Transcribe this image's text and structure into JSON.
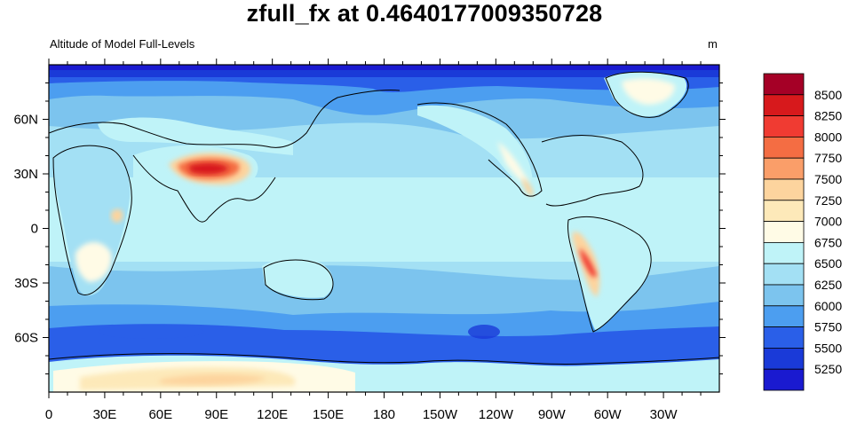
{
  "title": "zfull_fx at 0.4640177009350728",
  "left_string": "Altitude of Model Full-Levels",
  "units": "m",
  "map": {
    "projection": "cylindrical-equidistant",
    "lon_range": [
      0,
      360
    ],
    "lat_range": [
      -90,
      90
    ],
    "lon_tick_labels": [
      "0",
      "30E",
      "60E",
      "90E",
      "120E",
      "150E",
      "180",
      "150W",
      "120W",
      "90W",
      "60W",
      "30W"
    ],
    "lat_tick_labels": [
      "60N",
      "30N",
      "0",
      "30S",
      "60S"
    ]
  },
  "colorbar": {
    "labels": [
      "8500",
      "8250",
      "8000",
      "7750",
      "7500",
      "7250",
      "7000",
      "6750",
      "6500",
      "6250",
      "6000",
      "5750",
      "5500",
      "5250"
    ],
    "colors_top_to_bottom": [
      "#a50026",
      "#d7191c",
      "#f03b32",
      "#f46d43",
      "#fa9e69",
      "#fdd49e",
      "#fde9b9",
      "#fffbe6",
      "#bff3f8",
      "#a3e0f4",
      "#7cc4ee",
      "#4c9ef0",
      "#2a5fe8",
      "#1a3ad8",
      "#1a1ad0"
    ]
  }
}
